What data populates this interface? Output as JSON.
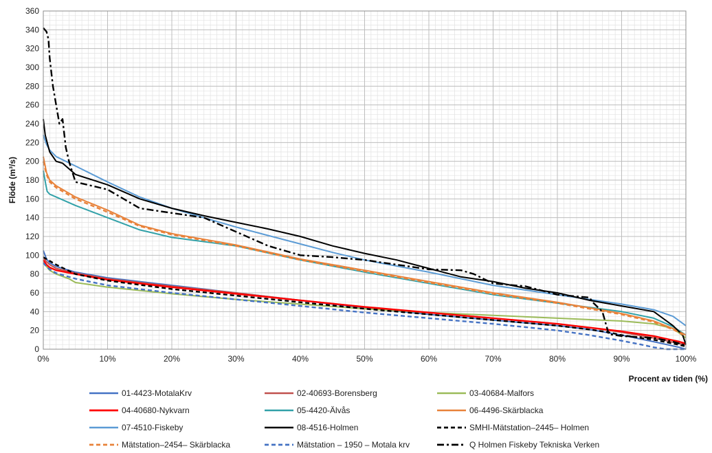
{
  "chart_data": {
    "type": "line",
    "title": "",
    "xlabel": "Procent av tiden (%)",
    "ylabel": "Flöde (m³/s)",
    "xlim": [
      0,
      100
    ],
    "ylim": [
      0,
      360
    ],
    "x_ticks": [
      0,
      10,
      20,
      30,
      40,
      50,
      60,
      70,
      80,
      90,
      100
    ],
    "x_tick_labels": [
      "0%",
      "10%",
      "20%",
      "30%",
      "40%",
      "50%",
      "60%",
      "70%",
      "80%",
      "90%",
      "100%"
    ],
    "y_ticks": [
      0,
      20,
      40,
      60,
      80,
      100,
      120,
      140,
      160,
      180,
      200,
      220,
      240,
      260,
      280,
      300,
      320,
      340,
      360
    ],
    "y_tick_labels": [
      "0",
      "20",
      "40",
      "60",
      "80",
      "100",
      "120",
      "140",
      "160",
      "180",
      "200",
      "220",
      "240",
      "260",
      "280",
      "300",
      "320",
      "340",
      "360"
    ],
    "grid": true,
    "legend_position": "bottom",
    "series": [
      {
        "name": "01-4423-MotalaKrv",
        "color": "#4472c4",
        "dash": "solid",
        "x": [
          0,
          0.5,
          1,
          2,
          5,
          10,
          20,
          30,
          40,
          50,
          60,
          70,
          80,
          85,
          90,
          95,
          97,
          99,
          100
        ],
        "y": [
          105,
          96,
          92,
          88,
          82,
          76,
          68,
          60,
          52,
          44,
          37,
          31,
          25,
          21,
          15,
          8,
          5,
          2,
          0
        ]
      },
      {
        "name": "02-40693-Borensberg",
        "color": "#c0504d",
        "dash": "solid",
        "x": [
          0,
          0.5,
          1,
          2,
          5,
          10,
          20,
          30,
          40,
          50,
          60,
          70,
          80,
          85,
          90,
          95,
          97,
          99,
          100
        ],
        "y": [
          98,
          93,
          90,
          86,
          81,
          75,
          67,
          60,
          52,
          45,
          39,
          33,
          27,
          23,
          18,
          12,
          9,
          6,
          5
        ]
      },
      {
        "name": "03-40684-Malfors",
        "color": "#9bbb59",
        "dash": "solid",
        "x": [
          0,
          0.5,
          1,
          2,
          4,
          5,
          10,
          20,
          30,
          40,
          50,
          60,
          70,
          80,
          90,
          95,
          98,
          100
        ],
        "y": [
          92,
          88,
          84,
          80,
          75,
          71,
          66,
          59,
          53,
          48,
          43,
          39,
          36,
          33,
          30,
          27,
          22,
          12
        ]
      },
      {
        "name": "04-40680-Nykvarn",
        "color": "#ff0000",
        "dash": "solid",
        "x": [
          0,
          0.5,
          1,
          2,
          5,
          10,
          20,
          30,
          40,
          50,
          60,
          70,
          80,
          85,
          90,
          95,
          97,
          99,
          100
        ],
        "y": [
          95,
          90,
          87,
          84,
          80,
          74,
          66,
          59,
          52,
          45,
          39,
          33,
          27,
          23,
          19,
          14,
          11,
          8,
          6
        ]
      },
      {
        "name": "05-4420-Älvås",
        "color": "#31a1a8",
        "dash": "solid",
        "x": [
          0,
          0.4,
          0.6,
          1,
          2,
          5,
          10,
          15,
          20,
          30,
          40,
          50,
          60,
          70,
          80,
          90,
          95,
          98,
          100
        ],
        "y": [
          190,
          175,
          168,
          165,
          162,
          153,
          140,
          127,
          119,
          110,
          95,
          82,
          70,
          58,
          49,
          40,
          33,
          24,
          15
        ]
      },
      {
        "name": "06-4496-Skärblacka",
        "color": "#e8823a",
        "dash": "solid",
        "x": [
          0,
          0.5,
          1,
          2,
          5,
          10,
          15,
          20,
          30,
          40,
          50,
          60,
          70,
          80,
          85,
          90,
          95,
          98,
          100
        ],
        "y": [
          205,
          188,
          180,
          174,
          162,
          148,
          132,
          123,
          111,
          96,
          84,
          72,
          60,
          50,
          44,
          38,
          30,
          22,
          15
        ]
      },
      {
        "name": "07-4510-Fiskeby",
        "color": "#5b9bd5",
        "dash": "solid",
        "x": [
          0,
          0.5,
          1,
          2,
          5,
          10,
          15,
          20,
          25,
          30,
          40,
          45,
          50,
          60,
          70,
          80,
          90,
          95,
          98,
          100
        ],
        "y": [
          228,
          218,
          212,
          205,
          195,
          178,
          162,
          150,
          140,
          130,
          112,
          103,
          95,
          82,
          68,
          58,
          48,
          42,
          35,
          25
        ]
      },
      {
        "name": "08-4516-Holmen",
        "color": "#000000",
        "dash": "solid",
        "x": [
          0,
          0.3,
          0.6,
          1,
          2,
          3,
          5,
          10,
          15,
          20,
          25,
          30,
          35,
          40,
          45,
          50,
          55,
          60,
          65,
          70,
          75,
          80,
          85,
          90,
          95,
          98,
          99.5,
          100
        ],
        "y": [
          245,
          228,
          220,
          210,
          200,
          198,
          186,
          175,
          160,
          150,
          142,
          135,
          128,
          120,
          110,
          102,
          95,
          86,
          77,
          72,
          65,
          60,
          52,
          46,
          40,
          25,
          15,
          5
        ]
      },
      {
        "name": "SMHI-Mätstation–2445– Holmen",
        "color": "#000000",
        "dash": "dashed",
        "x": [
          0,
          2,
          5,
          10,
          20,
          30,
          40,
          50,
          60,
          70,
          80,
          85,
          88,
          90,
          95,
          98,
          100
        ],
        "y": [
          98,
          90,
          80,
          73,
          64,
          57,
          50,
          43,
          37,
          31,
          25,
          21,
          18,
          15,
          10,
          6,
          3
        ]
      },
      {
        "name": "Mätstation–2454– Skärblacka",
        "color": "#e8823a",
        "dash": "dashed",
        "x": [
          0,
          0.5,
          1,
          2,
          5,
          10,
          15,
          20,
          30,
          40,
          50,
          60,
          70,
          80,
          85,
          90,
          95,
          98,
          100
        ],
        "y": [
          200,
          186,
          178,
          172,
          160,
          146,
          131,
          122,
          110,
          95,
          83,
          71,
          59,
          49,
          43,
          37,
          29,
          21,
          14
        ]
      },
      {
        "name": "Mätstation – 1950 – Motala krv",
        "color": "#4472c4",
        "dash": "dashed",
        "x": [
          0,
          0.5,
          1,
          2,
          5,
          10,
          20,
          30,
          40,
          50,
          60,
          70,
          80,
          85,
          90,
          93,
          95,
          97,
          100
        ],
        "y": [
          92,
          88,
          85,
          81,
          75,
          68,
          60,
          53,
          46,
          39,
          33,
          27,
          20,
          15,
          9,
          5,
          2,
          0,
          0
        ]
      },
      {
        "name": "Q Holmen Fiskeby Tekniska Verken",
        "color": "#000000",
        "dash": "dashdot",
        "x": [
          0,
          0.5,
          0.8,
          1,
          1.5,
          2.5,
          3,
          3.5,
          4,
          5,
          10,
          15,
          20,
          25,
          30,
          35,
          40,
          45,
          50,
          55,
          60,
          65,
          67,
          70,
          75,
          80,
          85,
          85.5,
          87,
          88,
          90,
          95,
          98,
          100
        ],
        "y": [
          342,
          338,
          330,
          310,
          280,
          240,
          245,
          215,
          200,
          178,
          170,
          150,
          145,
          140,
          125,
          110,
          100,
          98,
          95,
          90,
          85,
          84,
          80,
          70,
          67,
          58,
          55,
          50,
          40,
          16,
          14,
          12,
          8,
          4
        ]
      }
    ]
  }
}
